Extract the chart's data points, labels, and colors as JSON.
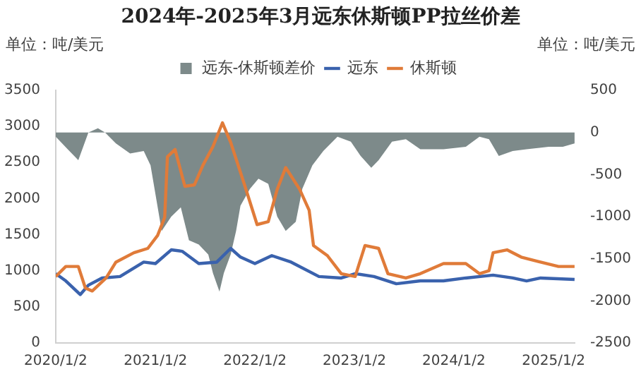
{
  "chart_data": {
    "type": "line",
    "title": "2024年-2025年3月远东休斯顿PP拉丝价差",
    "ylabel": "单位：吨/美元",
    "y2label": "单位：吨/美元",
    "xlim": [
      "2020-01-02",
      "2025-03-20"
    ],
    "xticks": [
      {
        "value": "2020-01-02",
        "label": "2020/1/2"
      },
      {
        "value": "2021-01-02",
        "label": "2021/1/2"
      },
      {
        "value": "2022-01-02",
        "label": "2022/1/2"
      },
      {
        "value": "2023-01-02",
        "label": "2023/1/2"
      },
      {
        "value": "2024-01-02",
        "label": "2024/1/2"
      },
      {
        "value": "2025-01-02",
        "label": "2025/1/2"
      }
    ],
    "ylim": [
      0,
      3500
    ],
    "yticks": [
      0,
      500,
      1000,
      1500,
      2000,
      2500,
      3000,
      3500
    ],
    "y2lim": [
      -2500,
      500
    ],
    "y2ticks": [
      -2500,
      -2000,
      -1500,
      -1000,
      -500,
      0,
      500
    ],
    "grid": false,
    "legend": "top",
    "series": [
      {
        "name": "远东-休斯顿差价",
        "type": "area",
        "axis": "y2",
        "color": "#7d8a8a",
        "x": [
          "2020-01-02",
          "2020-02-15",
          "2020-03-25",
          "2020-05-01",
          "2020-06-05",
          "2020-07-01",
          "2020-08-10",
          "2020-10-01",
          "2020-11-20",
          "2020-12-15",
          "2021-01-25",
          "2021-03-01",
          "2021-04-05",
          "2021-05-05",
          "2021-06-10",
          "2021-07-15",
          "2021-08-01",
          "2021-08-25",
          "2021-09-10",
          "2021-10-05",
          "2021-10-25",
          "2021-11-10",
          "2021-12-15",
          "2022-01-15",
          "2022-02-20",
          "2022-03-25",
          "2022-04-25",
          "2022-06-01",
          "2022-06-25",
          "2022-08-01",
          "2022-09-10",
          "2022-11-01",
          "2022-12-20",
          "2023-01-25",
          "2023-03-05",
          "2023-04-01",
          "2023-05-20",
          "2023-07-10",
          "2023-09-01",
          "2023-11-25",
          "2024-02-15",
          "2024-04-05",
          "2024-05-10",
          "2024-06-15",
          "2024-08-05",
          "2024-09-25",
          "2024-12-15",
          "2025-02-05",
          "2025-03-20"
        ],
        "values": [
          -50,
          -200,
          -330,
          0,
          50,
          0,
          -130,
          -250,
          -220,
          -390,
          -1170,
          -1000,
          -890,
          -1280,
          -1330,
          -1450,
          -1670,
          -1890,
          -1670,
          -1450,
          -1170,
          -870,
          -670,
          -550,
          -610,
          -1000,
          -1170,
          -1060,
          -670,
          -390,
          -220,
          -50,
          -110,
          -280,
          -420,
          -330,
          -110,
          -80,
          -200,
          -200,
          -170,
          -50,
          -80,
          -280,
          -220,
          -200,
          -170,
          -170,
          -130
        ]
      },
      {
        "name": "远东",
        "type": "line",
        "color": "#3a62ad",
        "x": [
          "2020-01-02",
          "2020-02-08",
          "2020-04-01",
          "2020-05-01",
          "2020-06-20",
          "2020-08-25",
          "2020-11-20",
          "2021-01-02",
          "2021-03-01",
          "2021-04-10",
          "2021-06-10",
          "2021-08-15",
          "2021-10-05",
          "2021-11-10",
          "2022-01-02",
          "2022-03-05",
          "2022-05-15",
          "2022-08-25",
          "2022-11-15",
          "2023-01-05",
          "2023-03-15",
          "2023-06-05",
          "2023-09-01",
          "2023-11-25",
          "2024-02-15",
          "2024-05-25",
          "2024-08-05",
          "2024-09-25",
          "2024-11-15",
          "2025-03-20"
        ],
        "values": [
          960,
          860,
          670,
          800,
          900,
          920,
          1120,
          1100,
          1290,
          1270,
          1100,
          1120,
          1310,
          1190,
          1100,
          1210,
          1120,
          920,
          900,
          960,
          920,
          820,
          860,
          860,
          900,
          940,
          900,
          860,
          900,
          880
        ]
      },
      {
        "name": "休斯顿",
        "type": "line",
        "color": "#e07b39",
        "x": [
          "2020-01-02",
          "2020-02-08",
          "2020-03-25",
          "2020-04-20",
          "2020-05-15",
          "2020-07-05",
          "2020-08-10",
          "2020-10-15",
          "2020-12-05",
          "2021-01-10",
          "2021-02-05",
          "2021-02-15",
          "2021-03-15",
          "2021-04-20",
          "2021-05-25",
          "2021-06-25",
          "2021-08-01",
          "2021-09-05",
          "2021-10-05",
          "2021-11-25",
          "2022-01-10",
          "2022-02-20",
          "2022-03-25",
          "2022-04-25",
          "2022-06-15",
          "2022-07-20",
          "2022-08-05",
          "2022-09-25",
          "2022-11-15",
          "2023-01-05",
          "2023-02-10",
          "2023-04-01",
          "2023-05-05",
          "2023-07-10",
          "2023-09-01",
          "2023-11-25",
          "2024-02-15",
          "2024-04-05",
          "2024-05-10",
          "2024-05-25",
          "2024-07-15",
          "2024-09-05",
          "2024-11-15",
          "2025-01-20",
          "2025-03-20"
        ],
        "values": [
          920,
          1060,
          1060,
          760,
          720,
          900,
          1120,
          1250,
          1310,
          1490,
          1740,
          2580,
          2680,
          2170,
          2190,
          2460,
          2720,
          3050,
          2780,
          2190,
          1640,
          1680,
          2130,
          2430,
          2130,
          1840,
          1350,
          1210,
          960,
          920,
          1350,
          1310,
          960,
          900,
          960,
          1100,
          1100,
          960,
          1000,
          1250,
          1290,
          1190,
          1120,
          1060,
          1060
        ]
      }
    ]
  }
}
